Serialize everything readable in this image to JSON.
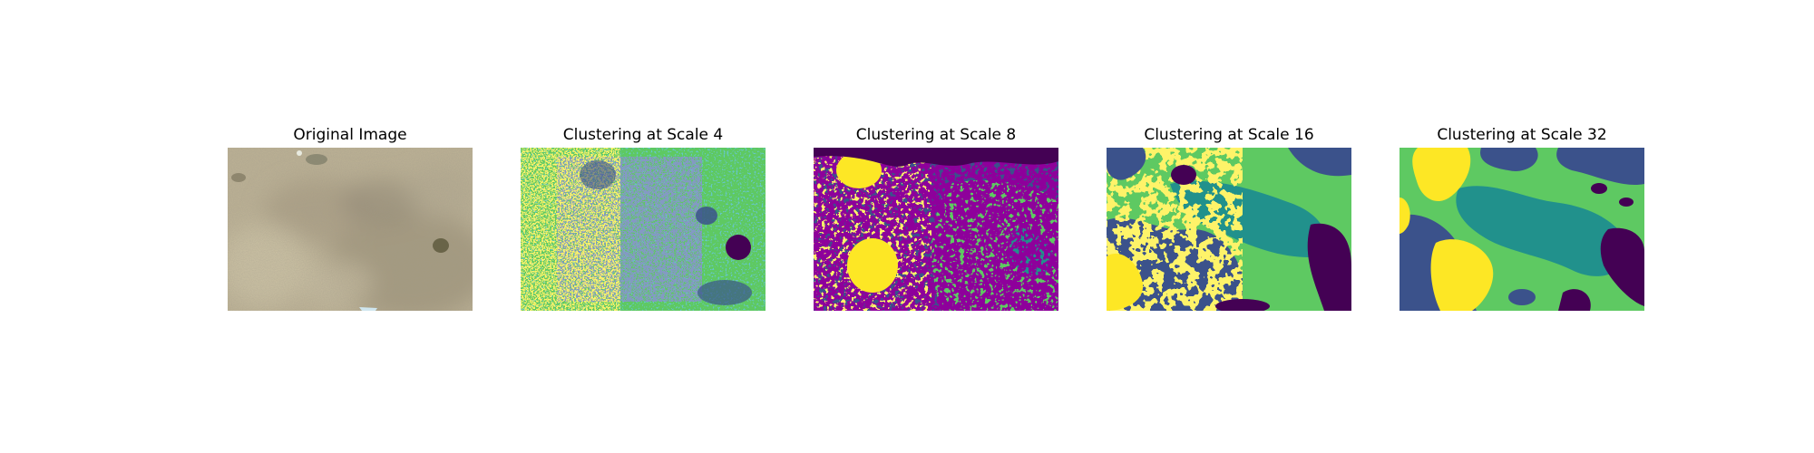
{
  "figure": {
    "panels": [
      {
        "title": "Original Image"
      },
      {
        "title": "Clustering at Scale 4"
      },
      {
        "title": "Clustering at Scale 8"
      },
      {
        "title": "Clustering at Scale 16"
      },
      {
        "title": "Clustering at Scale 32"
      }
    ],
    "palette": {
      "purple": "#440154",
      "blue": "#3b528b",
      "teal": "#21918c",
      "green": "#5ec962",
      "yellow": "#fde725",
      "photo_base": "#b5aa8e",
      "photo_dark": "#8a8069",
      "photo_light": "#d6cdb2"
    }
  }
}
